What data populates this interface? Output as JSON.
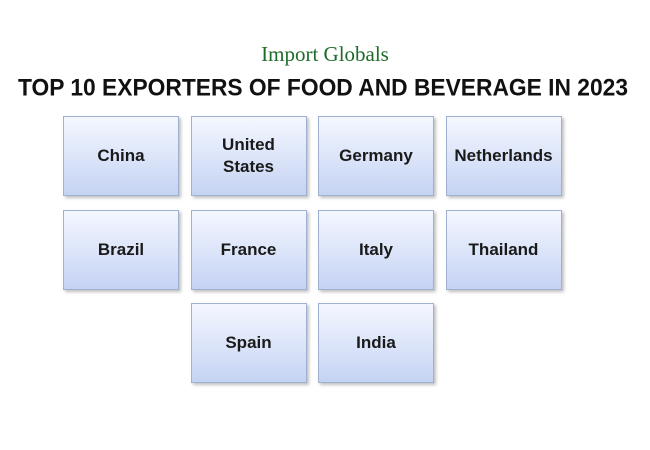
{
  "logo": "Import Globals",
  "title": "TOP 10 EXPORTERS OF FOOD AND BEVERAGE IN 2023",
  "countries": [
    "China",
    "United States",
    "Germany",
    "Netherlands",
    "Brazil",
    "France",
    "Italy",
    "Thailand",
    "Spain",
    "India"
  ]
}
